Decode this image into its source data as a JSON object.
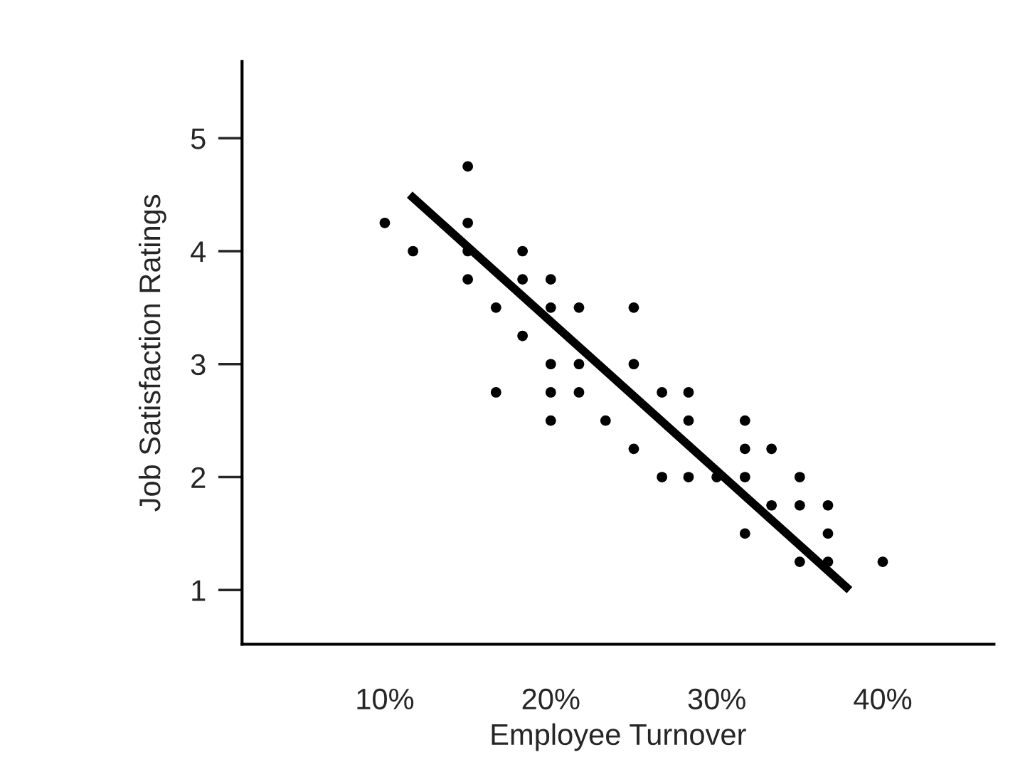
{
  "chart_data": {
    "type": "scatter",
    "xlabel": "Employee Turnover",
    "ylabel": "Job Satisfaction Ratings",
    "xlim": [
      1.4,
      46.7
    ],
    "ylim": [
      0.52,
      5.68
    ],
    "xticks": [
      {
        "value": 10,
        "label": "10%"
      },
      {
        "value": 20,
        "label": "20%"
      },
      {
        "value": 30,
        "label": "30%"
      },
      {
        "value": 40,
        "label": "40%"
      }
    ],
    "yticks": [
      1,
      2,
      3,
      4,
      5
    ],
    "grid": false,
    "legend": false,
    "series": [
      {
        "color": "#000000",
        "marker": "circle",
        "x": [
          10,
          11.7,
          15,
          15,
          15,
          15,
          16.7,
          16.7,
          18.3,
          18.3,
          18.3,
          20,
          20,
          20,
          20,
          20,
          21.7,
          21.7,
          21.7,
          23.3,
          25,
          25,
          25,
          26.7,
          26.7,
          28.3,
          28.3,
          28.3,
          30,
          31.7,
          31.7,
          31.7,
          31.7,
          33.3,
          33.3,
          35,
          35,
          35,
          36.7,
          36.7,
          36.7,
          40
        ],
        "values": [
          4.25,
          4.0,
          4.75,
          4.25,
          4.0,
          3.75,
          3.5,
          2.75,
          4.0,
          3.75,
          3.25,
          3.75,
          3.5,
          3.0,
          2.75,
          2.5,
          3.5,
          3.0,
          2.75,
          2.5,
          3.5,
          3.0,
          2.25,
          2.75,
          2.0,
          2.75,
          2.5,
          2.0,
          2.0,
          2.5,
          2.25,
          2.0,
          1.5,
          2.25,
          1.75,
          2.0,
          1.75,
          1.25,
          1.75,
          1.5,
          1.25,
          1.25
        ]
      },
      {
        "type": "line",
        "color": "#000000",
        "x": [
          11.5,
          38.0
        ],
        "values": [
          4.5,
          1.0
        ],
        "line_style": "solid",
        "marker": "none"
      }
    ]
  }
}
